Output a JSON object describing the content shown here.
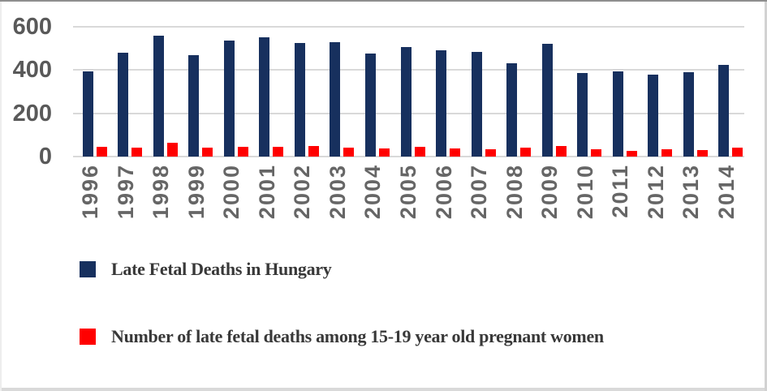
{
  "chart_data": {
    "type": "bar",
    "categories": [
      "1996",
      "1997",
      "1998",
      "1999",
      "2000",
      "2001",
      "2002",
      "2003",
      "2004",
      "2005",
      "2006",
      "2007",
      "2008",
      "2009",
      "2010",
      "2011",
      "2012",
      "2013",
      "2014"
    ],
    "series": [
      {
        "name": "Late Fetal Deaths in Hungary",
        "color": "#17305e",
        "values": [
          395,
          480,
          560,
          470,
          535,
          550,
          525,
          530,
          475,
          505,
          490,
          485,
          430,
          520,
          385,
          395,
          380,
          390,
          425
        ]
      },
      {
        "name": "Number of late fetal deaths among 15-19 year old pregnant women",
        "color": "#ff0000",
        "values": [
          45,
          42,
          63,
          42,
          46,
          45,
          48,
          40,
          36,
          44,
          38,
          35,
          40,
          48,
          32,
          28,
          35,
          30,
          40
        ]
      }
    ],
    "title": "",
    "xlabel": "",
    "ylabel": "",
    "ylim": [
      0,
      600
    ],
    "yticks": [
      0,
      200,
      400,
      600
    ],
    "grid": true,
    "legend_position": "below",
    "x_tick_rotation": 90,
    "gridline_color": "#d9d9d9",
    "y_tick_color": "#595959",
    "x_tick_color": "#666666",
    "legend_text_color": "#383838",
    "background_color": "#ffffff"
  }
}
